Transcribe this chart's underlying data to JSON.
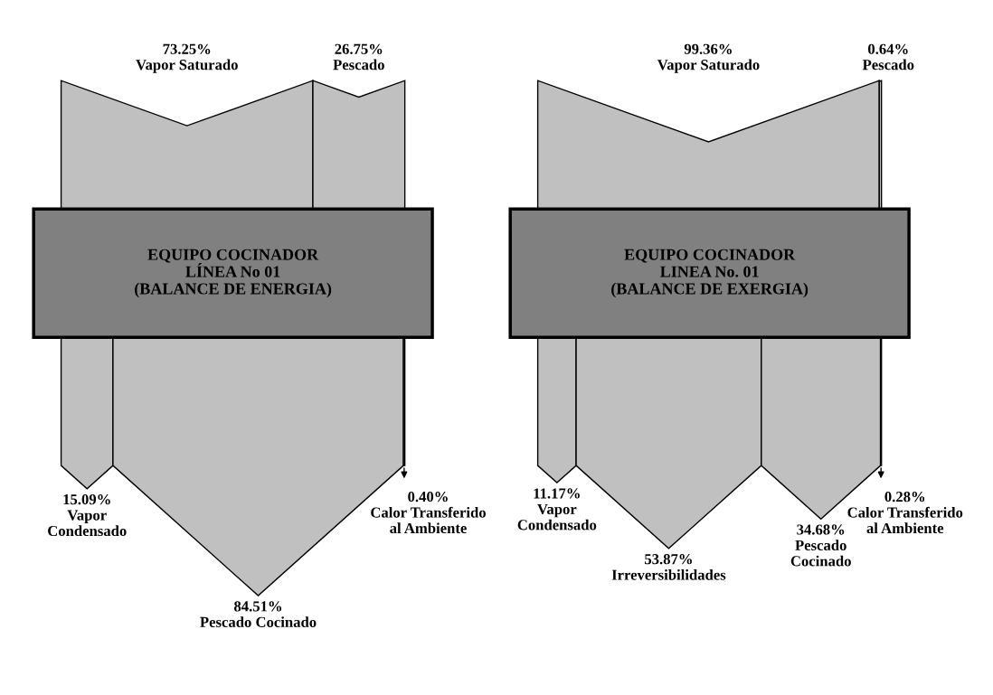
{
  "chart_data": [
    {
      "type": "other",
      "title": "EQUIPO COCINADOR\nLÍNEA No 01\n(BALANCE DE ENERGIA)",
      "categories": [
        "Vapor Saturado",
        "Pescado",
        "Vapor\nCondensado",
        "Pescado Cocinado",
        "Calor Transferido\nal Ambiente"
      ],
      "series": [
        {
          "color": "#c0c0c0",
          "values": [
            73.25,
            26.75,
            null,
            null,
            null
          ],
          "value_labels": [
            "73.25%",
            "26.75%",
            null,
            null,
            null
          ]
        },
        {
          "color": "#c0c0c0",
          "values": [
            null,
            null,
            15.09,
            84.51,
            0.4
          ],
          "value_labels": [
            null,
            null,
            "15.09%",
            "84.51%",
            "0.40%"
          ]
        }
      ]
    },
    {
      "type": "other",
      "title": "EQUIPO COCINADOR\nLINEA No. 01\n(BALANCE DE EXERGIA)",
      "categories": [
        "Vapor Saturado",
        "Pescado",
        "Vapor\nCondensado",
        "Irreversibilidades",
        "Pescado\nCocinado",
        "Calor Transferido\nal Ambiente"
      ],
      "series": [
        {
          "color": "#c0c0c0",
          "values": [
            99.36,
            0.64,
            null,
            null,
            null,
            null
          ],
          "value_labels": [
            "99.36%",
            "0.64%",
            null,
            null,
            null,
            null
          ]
        },
        {
          "color": "#c0c0c0",
          "values": [
            null,
            null,
            11.17,
            53.87,
            34.68,
            0.28
          ],
          "value_labels": [
            null,
            null,
            "11.17%",
            "53.87%",
            "34.68%",
            "0.28%"
          ]
        }
      ]
    }
  ]
}
